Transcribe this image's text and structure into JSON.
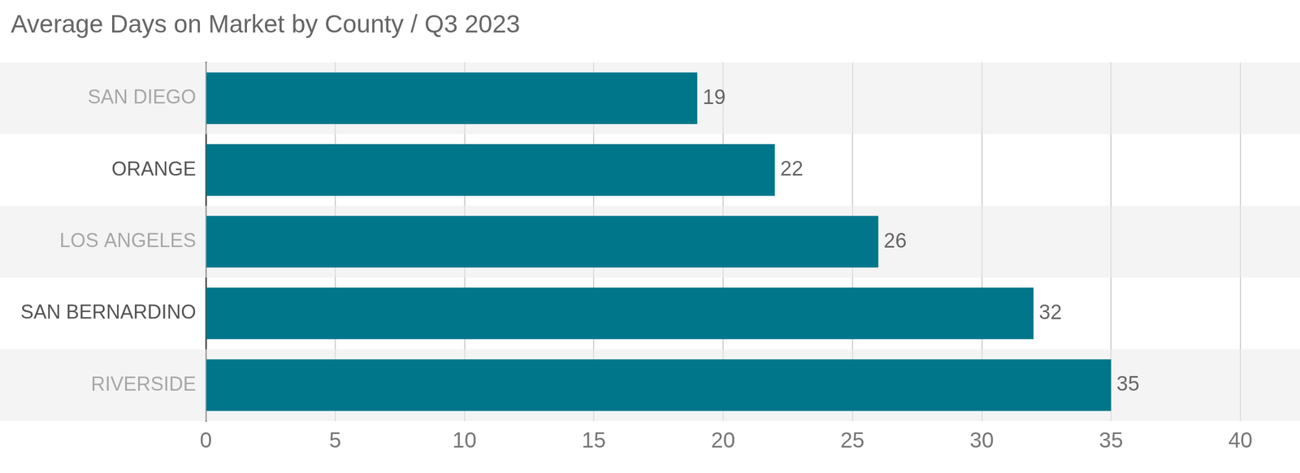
{
  "chart_data": {
    "type": "bar",
    "orientation": "horizontal",
    "title": "Average Days on Market by County / Q3 2023",
    "categories": [
      "SAN DIEGO",
      "ORANGE",
      "LOS ANGELES",
      "SAN BERNARDINO",
      "RIVERSIDE"
    ],
    "values": [
      19,
      22,
      26,
      32,
      35
    ],
    "color": "#00768a",
    "xlim": [
      0,
      40
    ],
    "xticks": [
      0,
      5,
      10,
      15,
      20,
      25,
      30,
      35,
      40
    ],
    "grid": true,
    "data_labels": true
  }
}
